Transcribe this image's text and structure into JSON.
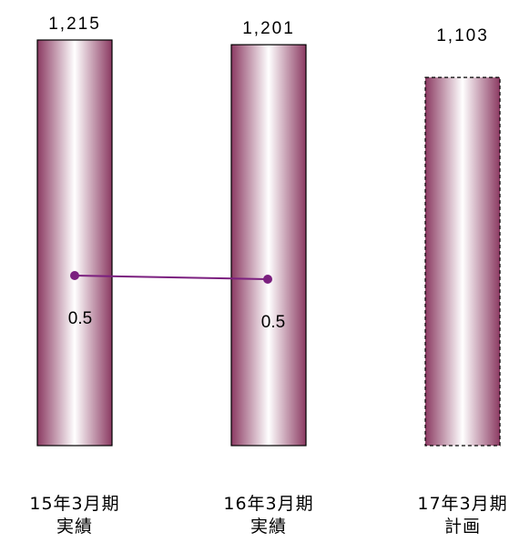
{
  "chart_data": {
    "type": "bar",
    "categories": [
      [
        "15年3月期",
        "実績"
      ],
      [
        "16年3月期",
        "実績"
      ],
      [
        "17年3月期",
        "計画"
      ]
    ],
    "values": [
      1215,
      1201,
      1103
    ],
    "value_labels": [
      "1,215",
      "1,201",
      "1,103"
    ],
    "bar_styles": [
      "solid",
      "solid",
      "dashed"
    ],
    "ylim": [
      0,
      1215
    ],
    "line_series": {
      "values": [
        0.5,
        0.5
      ],
      "labels": [
        "0.5",
        "0.5"
      ],
      "color": "#7b1f7f"
    },
    "colors": {
      "bar_edge": "#8b3a62",
      "bar_center": "#ffffff",
      "line": "#7b1f7f"
    }
  }
}
